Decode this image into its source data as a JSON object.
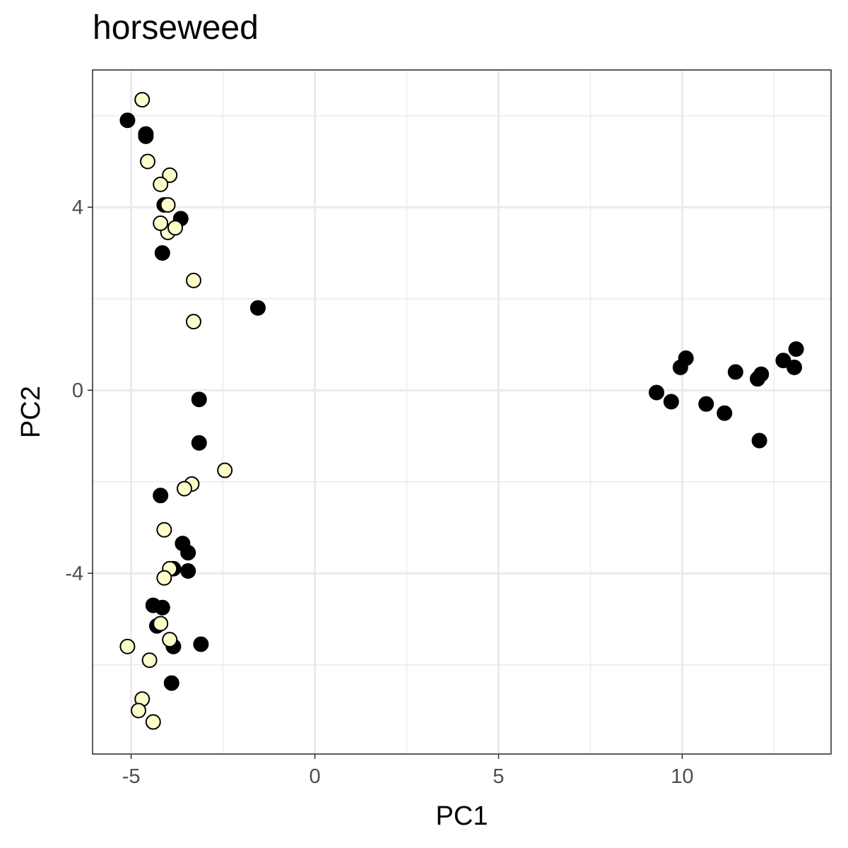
{
  "chart_data": {
    "type": "scatter",
    "title": "horseweed",
    "xlabel": "PC1",
    "ylabel": "PC2",
    "xlim": [
      -6.05,
      14.05
    ],
    "ylim": [
      -7.95,
      7.0
    ],
    "x_ticks": [
      -5,
      0,
      5,
      10
    ],
    "x_tick_labels": [
      "-5",
      "0",
      "5",
      "10"
    ],
    "y_ticks": [
      -4,
      0,
      4
    ],
    "y_tick_labels": [
      "-4",
      "0",
      "4"
    ],
    "grid": true,
    "legend": "none",
    "series": [
      {
        "color": "#000000",
        "points": [
          [
            -5.1,
            5.9
          ],
          [
            -4.6,
            5.6
          ],
          [
            -4.6,
            5.55
          ],
          [
            -4.1,
            4.05
          ],
          [
            -3.65,
            3.75
          ],
          [
            -4.15,
            3.0
          ],
          [
            -1.55,
            1.8
          ],
          [
            -3.15,
            -0.2
          ],
          [
            -3.15,
            -1.15
          ],
          [
            -4.2,
            -2.3
          ],
          [
            -3.6,
            -3.35
          ],
          [
            -3.45,
            -3.55
          ],
          [
            -3.85,
            -3.9
          ],
          [
            -3.45,
            -3.95
          ],
          [
            -4.4,
            -4.7
          ],
          [
            -4.15,
            -4.75
          ],
          [
            -4.3,
            -5.15
          ],
          [
            -3.85,
            -5.6
          ],
          [
            -3.1,
            -5.55
          ],
          [
            -3.9,
            -6.4
          ],
          [
            9.3,
            -0.05
          ],
          [
            10.1,
            0.7
          ],
          [
            9.95,
            0.5
          ],
          [
            9.7,
            -0.25
          ],
          [
            10.65,
            -0.3
          ],
          [
            11.15,
            -0.5
          ],
          [
            11.45,
            0.4
          ],
          [
            12.05,
            0.25
          ],
          [
            12.15,
            0.35
          ],
          [
            12.1,
            -1.1
          ],
          [
            12.75,
            0.65
          ],
          [
            13.05,
            0.5
          ],
          [
            13.1,
            0.9
          ]
        ]
      },
      {
        "color": "#FFFFCC",
        "points": [
          [
            -4.7,
            6.35
          ],
          [
            -4.55,
            5.0
          ],
          [
            -3.95,
            4.7
          ],
          [
            -4.2,
            4.5
          ],
          [
            -4.0,
            4.05
          ],
          [
            -4.0,
            3.45
          ],
          [
            -3.8,
            3.55
          ],
          [
            -4.2,
            3.65
          ],
          [
            -3.3,
            2.4
          ],
          [
            -3.3,
            1.5
          ],
          [
            -2.45,
            -1.75
          ],
          [
            -3.35,
            -2.05
          ],
          [
            -3.55,
            -2.15
          ],
          [
            -4.1,
            -3.05
          ],
          [
            -3.95,
            -3.9
          ],
          [
            -4.1,
            -4.1
          ],
          [
            -4.2,
            -5.1
          ],
          [
            -3.95,
            -5.45
          ],
          [
            -5.1,
            -5.6
          ],
          [
            -4.5,
            -5.9
          ],
          [
            -4.7,
            -6.75
          ],
          [
            -4.8,
            -7.0
          ],
          [
            -4.4,
            -7.25
          ]
        ]
      }
    ]
  }
}
